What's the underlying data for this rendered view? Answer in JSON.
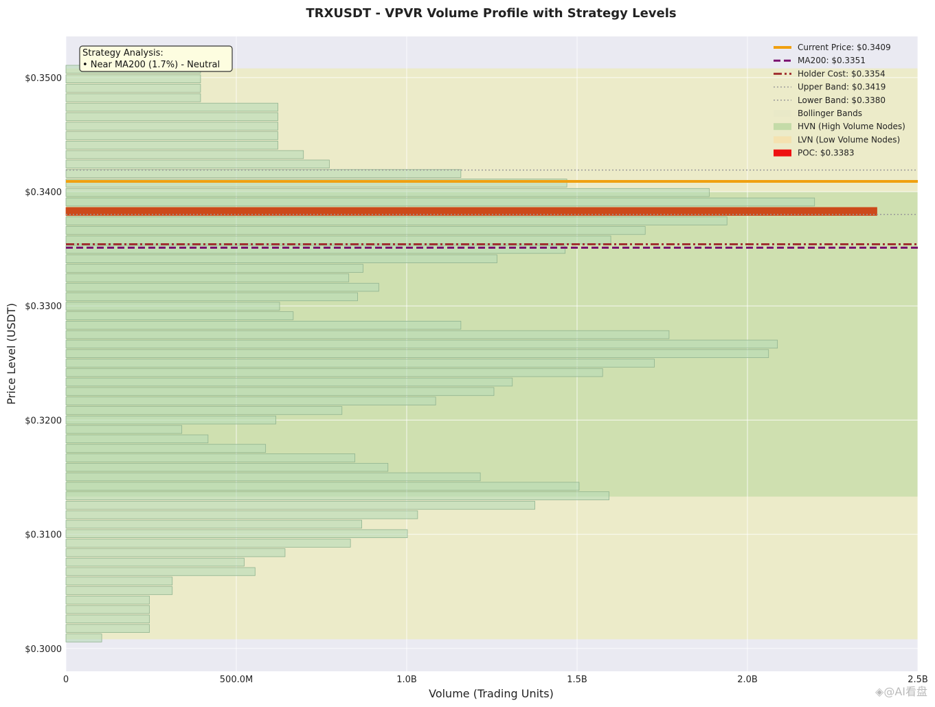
{
  "chart_data": {
    "type": "bar",
    "orientation": "horizontal",
    "title": "TRXUSDT - VPVR Volume Profile with Strategy Levels",
    "xlabel": "Volume (Trading Units)",
    "ylabel": "Price Level (USDT)",
    "xlim": [
      0,
      2500000000
    ],
    "ylim": [
      0.298,
      0.3536
    ],
    "xticks": [
      {
        "value": 0,
        "label": "0"
      },
      {
        "value": 500000000,
        "label": "500.0M"
      },
      {
        "value": 1000000000,
        "label": "1.0B"
      },
      {
        "value": 1500000000,
        "label": "1.5B"
      },
      {
        "value": 2000000000,
        "label": "2.0B"
      },
      {
        "value": 2500000000,
        "label": "2.5B"
      }
    ],
    "yticks": [
      {
        "value": 0.3,
        "label": "$0.3000"
      },
      {
        "value": 0.31,
        "label": "$0.3100"
      },
      {
        "value": 0.32,
        "label": "$0.3200"
      },
      {
        "value": 0.33,
        "label": "$0.3300"
      },
      {
        "value": 0.34,
        "label": "$0.3400"
      },
      {
        "value": 0.35,
        "label": "$0.3500"
      }
    ],
    "grid": true,
    "legend_position": "top-right",
    "bin_size": 0.00083,
    "bins": [
      {
        "price": 0.30092,
        "volume": 105000000
      },
      {
        "price": 0.30175,
        "volume": 245000000
      },
      {
        "price": 0.30258,
        "volume": 245000000
      },
      {
        "price": 0.30341,
        "volume": 245000000
      },
      {
        "price": 0.30424,
        "volume": 245000000
      },
      {
        "price": 0.30507,
        "volume": 312000000
      },
      {
        "price": 0.3059,
        "volume": 312000000
      },
      {
        "price": 0.30673,
        "volume": 555000000
      },
      {
        "price": 0.30756,
        "volume": 523000000
      },
      {
        "price": 0.30839,
        "volume": 643000000
      },
      {
        "price": 0.30922,
        "volume": 835000000
      },
      {
        "price": 0.31005,
        "volume": 1002000000
      },
      {
        "price": 0.31088,
        "volume": 868000000
      },
      {
        "price": 0.31171,
        "volume": 1032000000
      },
      {
        "price": 0.31254,
        "volume": 1376000000
      },
      {
        "price": 0.31337,
        "volume": 1594000000
      },
      {
        "price": 0.3142,
        "volume": 1506000000
      },
      {
        "price": 0.31503,
        "volume": 1216000000
      },
      {
        "price": 0.31586,
        "volume": 945000000
      },
      {
        "price": 0.31669,
        "volume": 848000000
      },
      {
        "price": 0.31752,
        "volume": 586000000
      },
      {
        "price": 0.31835,
        "volume": 417000000
      },
      {
        "price": 0.31918,
        "volume": 340000000
      },
      {
        "price": 0.32001,
        "volume": 616000000
      },
      {
        "price": 0.32084,
        "volume": 810000000
      },
      {
        "price": 0.32167,
        "volume": 1085000000
      },
      {
        "price": 0.3225,
        "volume": 1256000000
      },
      {
        "price": 0.32333,
        "volume": 1310000000
      },
      {
        "price": 0.32416,
        "volume": 1575000000
      },
      {
        "price": 0.32499,
        "volume": 1727000000
      },
      {
        "price": 0.32582,
        "volume": 2062000000
      },
      {
        "price": 0.32665,
        "volume": 2088000000
      },
      {
        "price": 0.32748,
        "volume": 1770000000
      },
      {
        "price": 0.32831,
        "volume": 1159000000
      },
      {
        "price": 0.32914,
        "volume": 667000000
      },
      {
        "price": 0.32997,
        "volume": 627000000
      },
      {
        "price": 0.3308,
        "volume": 856000000
      },
      {
        "price": 0.33163,
        "volume": 918000000
      },
      {
        "price": 0.33246,
        "volume": 830000000
      },
      {
        "price": 0.33329,
        "volume": 872000000
      },
      {
        "price": 0.33412,
        "volume": 1265000000
      },
      {
        "price": 0.33495,
        "volume": 1465000000
      },
      {
        "price": 0.33578,
        "volume": 1599000000
      },
      {
        "price": 0.33661,
        "volume": 1700000000
      },
      {
        "price": 0.33744,
        "volume": 1940000000
      },
      {
        "price": 0.33827,
        "volume": 2380000000
      },
      {
        "price": 0.3391,
        "volume": 2197000000
      },
      {
        "price": 0.33993,
        "volume": 1888000000
      },
      {
        "price": 0.34076,
        "volume": 1470000000
      },
      {
        "price": 0.34159,
        "volume": 1159000000
      },
      {
        "price": 0.34242,
        "volume": 773000000
      },
      {
        "price": 0.34325,
        "volume": 697000000
      },
      {
        "price": 0.34408,
        "volume": 622000000
      },
      {
        "price": 0.34491,
        "volume": 622000000
      },
      {
        "price": 0.34574,
        "volume": 622000000
      },
      {
        "price": 0.34657,
        "volume": 622000000
      },
      {
        "price": 0.3474,
        "volume": 622000000
      },
      {
        "price": 0.34823,
        "volume": 395000000
      },
      {
        "price": 0.34906,
        "volume": 395000000
      },
      {
        "price": 0.34989,
        "volume": 395000000
      },
      {
        "price": 0.35072,
        "volume": 395000000
      }
    ],
    "poc_price": 0.33827,
    "bollinger_bands": {
      "lower": 0.3008,
      "upper": 0.3508
    },
    "hvn_zone": {
      "lower": 0.3133,
      "upper": 0.34
    },
    "levels": [
      {
        "name": "Current Price",
        "value": 0.3409,
        "color": "#f0a010",
        "style": "solid"
      },
      {
        "name": "MA200",
        "value": 0.3351,
        "color": "#7a1070",
        "style": "dashed"
      },
      {
        "name": "Holder Cost",
        "value": 0.3354,
        "color": "#a03030",
        "style": "dashdot"
      },
      {
        "name": "Upper Band",
        "value": 0.3419,
        "color": "#999999",
        "style": "dotted"
      },
      {
        "name": "Lower Band",
        "value": 0.338,
        "color": "#999999",
        "style": "dotted"
      }
    ],
    "legend": [
      {
        "label": "Current Price: $0.3409",
        "swatch": "line",
        "color": "#f0a010",
        "style": "solid"
      },
      {
        "label": "MA200: $0.3351",
        "swatch": "line",
        "color": "#7a1070",
        "style": "dashed"
      },
      {
        "label": "Holder Cost: $0.3354",
        "swatch": "line",
        "color": "#a03030",
        "style": "dashdot"
      },
      {
        "label": "Upper Band: $0.3419",
        "swatch": "line",
        "color": "#999999",
        "style": "dotted"
      },
      {
        "label": "Lower Band: $0.3380",
        "swatch": "line",
        "color": "#999999",
        "style": "dotted"
      },
      {
        "label": "Bollinger Bands",
        "swatch": "box",
        "color": "#e9e9c8"
      },
      {
        "label": "HVN (High Volume Nodes)",
        "swatch": "box",
        "color": "#c4dba8"
      },
      {
        "label": "LVN (Low Volume Nodes)",
        "swatch": "box",
        "color": "#f4e2b0"
      },
      {
        "label": "POC: $0.3383",
        "swatch": "box",
        "color": "#ee1111"
      }
    ],
    "annotation": {
      "title": "Strategy Analysis:",
      "line": "• Near MA200 (1.7%) - Neutral"
    },
    "colors": {
      "plot_bg": "#eaeaf2",
      "bollinger_fill": "#ecebc9",
      "hvn_fill": "#cfe0b0",
      "bar_fill": "#b8dbb8",
      "bar_edge": "#8fb28f",
      "poc_fill": "#cc4a1a"
    }
  },
  "watermark": "◈@AI看盘"
}
